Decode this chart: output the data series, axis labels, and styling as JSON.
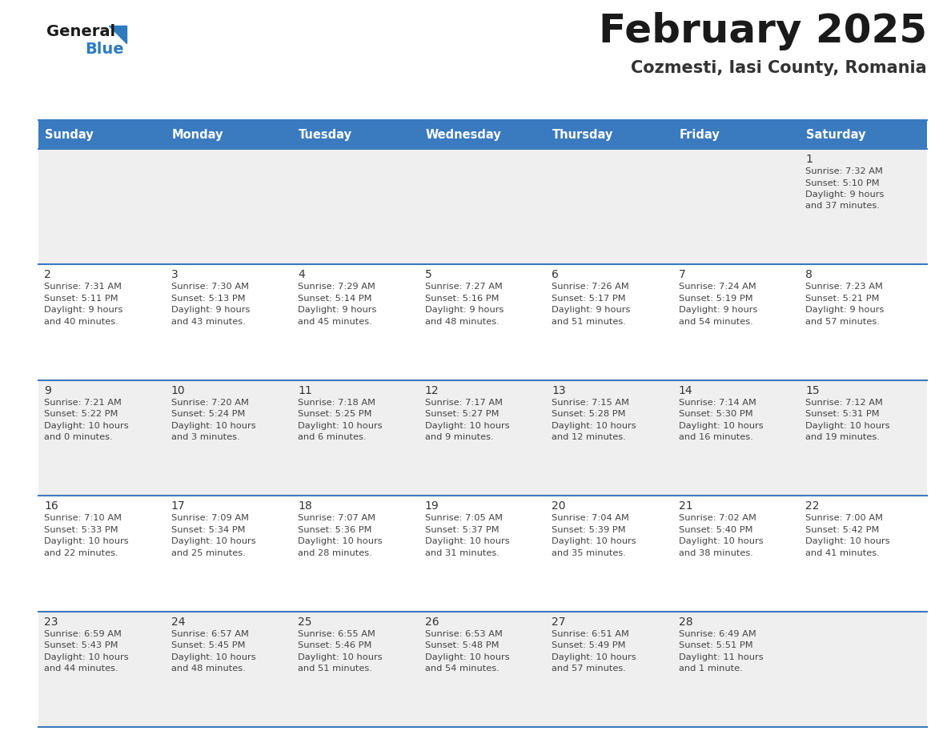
{
  "title": "February 2025",
  "subtitle": "Cozmesti, Iasi County, Romania",
  "header_bg": "#3a7abf",
  "header_text_color": "#ffffff",
  "day_names": [
    "Sunday",
    "Monday",
    "Tuesday",
    "Wednesday",
    "Thursday",
    "Friday",
    "Saturday"
  ],
  "row_bg_odd": "#efefef",
  "row_bg_even": "#ffffff",
  "cell_text_color": "#444444",
  "day_num_color": "#333333",
  "border_color": "#3a7abf",
  "logo_general_color": "#1a1a1a",
  "logo_blue_color": "#2e7bbf",
  "title_color": "#1a1a1a",
  "subtitle_color": "#333333",
  "calendar": [
    [
      null,
      null,
      null,
      null,
      null,
      null,
      {
        "day": 1,
        "sunrise": "7:32 AM",
        "sunset": "5:10 PM",
        "daylight_line1": "Daylight: 9 hours",
        "daylight_line2": "and 37 minutes."
      }
    ],
    [
      {
        "day": 2,
        "sunrise": "7:31 AM",
        "sunset": "5:11 PM",
        "daylight_line1": "Daylight: 9 hours",
        "daylight_line2": "and 40 minutes."
      },
      {
        "day": 3,
        "sunrise": "7:30 AM",
        "sunset": "5:13 PM",
        "daylight_line1": "Daylight: 9 hours",
        "daylight_line2": "and 43 minutes."
      },
      {
        "day": 4,
        "sunrise": "7:29 AM",
        "sunset": "5:14 PM",
        "daylight_line1": "Daylight: 9 hours",
        "daylight_line2": "and 45 minutes."
      },
      {
        "day": 5,
        "sunrise": "7:27 AM",
        "sunset": "5:16 PM",
        "daylight_line1": "Daylight: 9 hours",
        "daylight_line2": "and 48 minutes."
      },
      {
        "day": 6,
        "sunrise": "7:26 AM",
        "sunset": "5:17 PM",
        "daylight_line1": "Daylight: 9 hours",
        "daylight_line2": "and 51 minutes."
      },
      {
        "day": 7,
        "sunrise": "7:24 AM",
        "sunset": "5:19 PM",
        "daylight_line1": "Daylight: 9 hours",
        "daylight_line2": "and 54 minutes."
      },
      {
        "day": 8,
        "sunrise": "7:23 AM",
        "sunset": "5:21 PM",
        "daylight_line1": "Daylight: 9 hours",
        "daylight_line2": "and 57 minutes."
      }
    ],
    [
      {
        "day": 9,
        "sunrise": "7:21 AM",
        "sunset": "5:22 PM",
        "daylight_line1": "Daylight: 10 hours",
        "daylight_line2": "and 0 minutes."
      },
      {
        "day": 10,
        "sunrise": "7:20 AM",
        "sunset": "5:24 PM",
        "daylight_line1": "Daylight: 10 hours",
        "daylight_line2": "and 3 minutes."
      },
      {
        "day": 11,
        "sunrise": "7:18 AM",
        "sunset": "5:25 PM",
        "daylight_line1": "Daylight: 10 hours",
        "daylight_line2": "and 6 minutes."
      },
      {
        "day": 12,
        "sunrise": "7:17 AM",
        "sunset": "5:27 PM",
        "daylight_line1": "Daylight: 10 hours",
        "daylight_line2": "and 9 minutes."
      },
      {
        "day": 13,
        "sunrise": "7:15 AM",
        "sunset": "5:28 PM",
        "daylight_line1": "Daylight: 10 hours",
        "daylight_line2": "and 12 minutes."
      },
      {
        "day": 14,
        "sunrise": "7:14 AM",
        "sunset": "5:30 PM",
        "daylight_line1": "Daylight: 10 hours",
        "daylight_line2": "and 16 minutes."
      },
      {
        "day": 15,
        "sunrise": "7:12 AM",
        "sunset": "5:31 PM",
        "daylight_line1": "Daylight: 10 hours",
        "daylight_line2": "and 19 minutes."
      }
    ],
    [
      {
        "day": 16,
        "sunrise": "7:10 AM",
        "sunset": "5:33 PM",
        "daylight_line1": "Daylight: 10 hours",
        "daylight_line2": "and 22 minutes."
      },
      {
        "day": 17,
        "sunrise": "7:09 AM",
        "sunset": "5:34 PM",
        "daylight_line1": "Daylight: 10 hours",
        "daylight_line2": "and 25 minutes."
      },
      {
        "day": 18,
        "sunrise": "7:07 AM",
        "sunset": "5:36 PM",
        "daylight_line1": "Daylight: 10 hours",
        "daylight_line2": "and 28 minutes."
      },
      {
        "day": 19,
        "sunrise": "7:05 AM",
        "sunset": "5:37 PM",
        "daylight_line1": "Daylight: 10 hours",
        "daylight_line2": "and 31 minutes."
      },
      {
        "day": 20,
        "sunrise": "7:04 AM",
        "sunset": "5:39 PM",
        "daylight_line1": "Daylight: 10 hours",
        "daylight_line2": "and 35 minutes."
      },
      {
        "day": 21,
        "sunrise": "7:02 AM",
        "sunset": "5:40 PM",
        "daylight_line1": "Daylight: 10 hours",
        "daylight_line2": "and 38 minutes."
      },
      {
        "day": 22,
        "sunrise": "7:00 AM",
        "sunset": "5:42 PM",
        "daylight_line1": "Daylight: 10 hours",
        "daylight_line2": "and 41 minutes."
      }
    ],
    [
      {
        "day": 23,
        "sunrise": "6:59 AM",
        "sunset": "5:43 PM",
        "daylight_line1": "Daylight: 10 hours",
        "daylight_line2": "and 44 minutes."
      },
      {
        "day": 24,
        "sunrise": "6:57 AM",
        "sunset": "5:45 PM",
        "daylight_line1": "Daylight: 10 hours",
        "daylight_line2": "and 48 minutes."
      },
      {
        "day": 25,
        "sunrise": "6:55 AM",
        "sunset": "5:46 PM",
        "daylight_line1": "Daylight: 10 hours",
        "daylight_line2": "and 51 minutes."
      },
      {
        "day": 26,
        "sunrise": "6:53 AM",
        "sunset": "5:48 PM",
        "daylight_line1": "Daylight: 10 hours",
        "daylight_line2": "and 54 minutes."
      },
      {
        "day": 27,
        "sunrise": "6:51 AM",
        "sunset": "5:49 PM",
        "daylight_line1": "Daylight: 10 hours",
        "daylight_line2": "and 57 minutes."
      },
      {
        "day": 28,
        "sunrise": "6:49 AM",
        "sunset": "5:51 PM",
        "daylight_line1": "Daylight: 11 hours",
        "daylight_line2": "and 1 minute."
      },
      null
    ]
  ]
}
